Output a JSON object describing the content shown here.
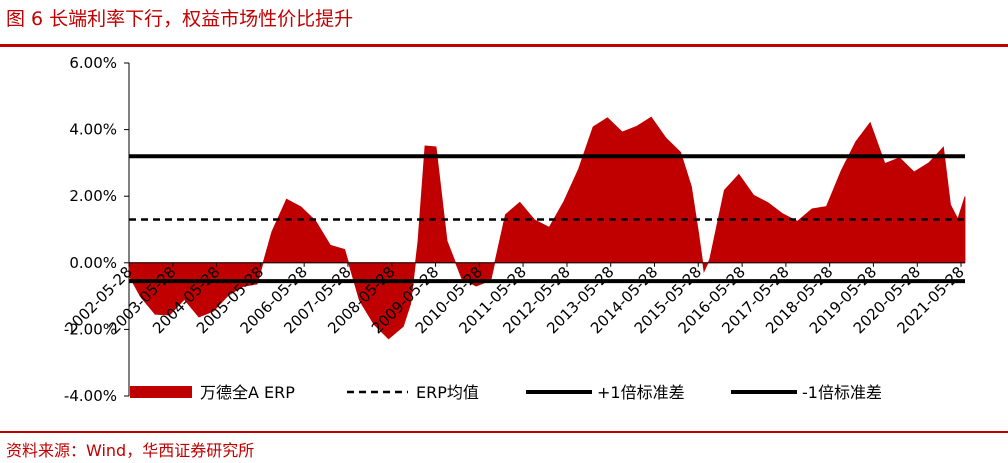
{
  "header": {
    "title": "图 6 长端利率下行，权益市场性价比提升"
  },
  "footer": {
    "source": "资料来源：Wind，华西证券研究所"
  },
  "colors": {
    "accent": "#c00000",
    "series": "#c00000",
    "lines": "#000000"
  },
  "chart_data": {
    "type": "area",
    "title": "",
    "xlabel": "",
    "ylabel": "",
    "ylim": [
      -4.0,
      6.0
    ],
    "y_ticks": [
      -4,
      -2,
      0,
      2,
      4,
      6
    ],
    "y_tick_labels": [
      "-4.00%",
      "-2.00%",
      "0.00%",
      "2.00%",
      "4.00%",
      "6.00%"
    ],
    "x_ticks": [
      "2002-05-28",
      "2003-05-28",
      "2004-05-28",
      "2005-05-28",
      "2006-05-28",
      "2007-05-28",
      "2008-05-28",
      "2009-05-28",
      "2010-05-28",
      "2011-05-28",
      "2012-05-28",
      "2013-05-28",
      "2014-05-28",
      "2015-05-28",
      "2016-05-28",
      "2017-05-28",
      "2018-05-28",
      "2019-05-28",
      "2020-05-28",
      "2021-05-28"
    ],
    "x_range": [
      "2002-05-28",
      "2021-06-30"
    ],
    "grid": false,
    "legend_position": "bottom",
    "series": [
      {
        "name": "万德全A ERP",
        "type": "area",
        "x": [
          "2002-05-28",
          "2002-09-01",
          "2003-01-01",
          "2003-05-01",
          "2003-09-01",
          "2004-01-01",
          "2004-05-01",
          "2004-09-01",
          "2005-01-01",
          "2005-05-01",
          "2005-09-01",
          "2006-01-01",
          "2006-05-01",
          "2006-09-01",
          "2007-01-01",
          "2007-05-01",
          "2007-09-01",
          "2008-01-01",
          "2008-05-01",
          "2008-09-01",
          "2008-11-01",
          "2009-01-01",
          "2009-03-01",
          "2009-06-01",
          "2009-09-01",
          "2010-01-01",
          "2010-05-01",
          "2010-09-01",
          "2011-01-01",
          "2011-05-01",
          "2011-09-01",
          "2012-01-01",
          "2012-05-01",
          "2012-09-01",
          "2013-01-01",
          "2013-05-01",
          "2013-09-01",
          "2014-01-01",
          "2014-05-01",
          "2014-09-01",
          "2015-01-01",
          "2015-04-01",
          "2015-06-01",
          "2015-07-15",
          "2015-09-01",
          "2016-01-01",
          "2016-05-01",
          "2016-09-01",
          "2017-01-01",
          "2017-05-01",
          "2017-09-01",
          "2018-01-01",
          "2018-05-01",
          "2018-09-01",
          "2019-01-01",
          "2019-05-01",
          "2019-09-01",
          "2020-01-01",
          "2020-05-01",
          "2020-09-01",
          "2021-01-01",
          "2021-03-01",
          "2021-05-01",
          "2021-06-30"
        ],
        "values": [
          -0.3,
          -1.0,
          -1.6,
          -1.5,
          -1.1,
          -1.7,
          -1.4,
          -1.0,
          -0.8,
          -0.6,
          0.9,
          2.0,
          1.7,
          1.2,
          0.6,
          0.4,
          -1.2,
          -1.8,
          -2.3,
          -2.0,
          -1.2,
          0.6,
          3.6,
          3.5,
          0.6,
          -0.4,
          -0.7,
          -0.6,
          1.5,
          1.8,
          1.2,
          1.1,
          1.8,
          2.9,
          4.1,
          4.3,
          4.0,
          4.1,
          4.3,
          3.8,
          3.3,
          2.2,
          0.9,
          -0.3,
          0.2,
          2.2,
          2.6,
          2.1,
          1.8,
          1.4,
          1.3,
          1.6,
          1.6,
          2.8,
          3.6,
          4.3,
          3.0,
          3.1,
          2.8,
          3.0,
          3.4,
          1.8,
          1.3,
          1.9
        ]
      },
      {
        "name": "ERP均值",
        "type": "line",
        "style": "dashed",
        "value": 1.3
      },
      {
        "name": "+1倍标准差",
        "type": "line",
        "style": "solid",
        "value": 3.2
      },
      {
        "name": "-1倍标准差",
        "type": "line",
        "style": "solid",
        "value": -0.55
      }
    ]
  }
}
